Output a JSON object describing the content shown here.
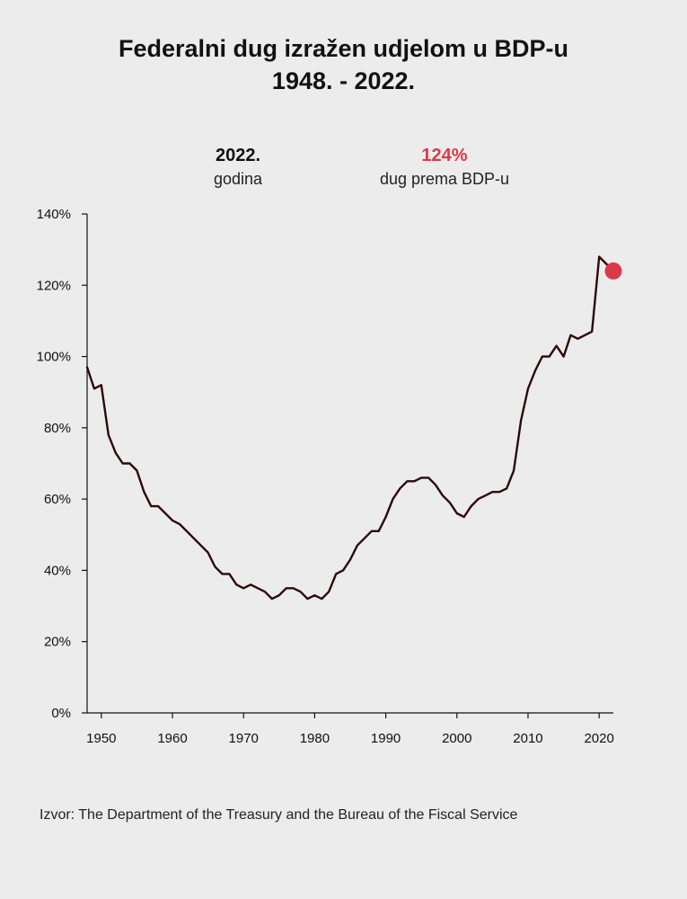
{
  "title_line1": "Federalni dug izražen udjelom u BDP-u",
  "title_line2": "1948. - 2022.",
  "highlight": {
    "year_value": "2022.",
    "year_label": "godina",
    "debt_value": "124%",
    "debt_label": "dug prema BDP-u"
  },
  "source": "Izvor: The Department of the Treasury and the Bureau of the Fiscal Service",
  "colors": {
    "line": "#2a0a0a",
    "highlight": "#d93a4b",
    "background": "#ececec"
  },
  "chart_data": {
    "type": "line",
    "title": "Federalni dug izražen udjelom u BDP-u 1948. - 2022.",
    "xlim": [
      1948,
      2022
    ],
    "ylim": [
      0,
      140
    ],
    "x_ticks": [
      "1950",
      "1960",
      "1970",
      "1980",
      "1990",
      "2000",
      "2010",
      "2020"
    ],
    "y_ticks": [
      "0%",
      "20%",
      "40%",
      "60%",
      "80%",
      "100%",
      "120%",
      "140%"
    ],
    "grid": false,
    "series": [
      {
        "x": [
          1948,
          1949,
          1950,
          1951,
          1952,
          1953,
          1954,
          1955,
          1956,
          1957,
          1958,
          1959,
          1960,
          1961,
          1962,
          1963,
          1964,
          1965,
          1966,
          1967,
          1968,
          1969,
          1970,
          1971,
          1972,
          1973,
          1974,
          1975,
          1976,
          1977,
          1978,
          1979,
          1980,
          1981,
          1982,
          1983,
          1984,
          1985,
          1986,
          1987,
          1988,
          1989,
          1990,
          1991,
          1992,
          1993,
          1994,
          1995,
          1996,
          1997,
          1998,
          1999,
          2000,
          2001,
          2002,
          2003,
          2004,
          2005,
          2006,
          2007,
          2008,
          2009,
          2010,
          2011,
          2012,
          2013,
          2014,
          2015,
          2016,
          2017,
          2018,
          2019,
          2020,
          2021
        ],
        "values": [
          97,
          91,
          92,
          78,
          73,
          70,
          70,
          68,
          62,
          58,
          58,
          56,
          54,
          53,
          51,
          49,
          47,
          45,
          41,
          39,
          39,
          36,
          35,
          36,
          35,
          34,
          32,
          33,
          35,
          35,
          34,
          32,
          33,
          32,
          34,
          39,
          40,
          43,
          47,
          49,
          51,
          51,
          55,
          60,
          63,
          65,
          65,
          66,
          66,
          64,
          61,
          59,
          56,
          55,
          58,
          60,
          61,
          62,
          62,
          63,
          68,
          82,
          91,
          96,
          100,
          100,
          103,
          100,
          106,
          105,
          106,
          107,
          128,
          126
        ]
      }
    ],
    "highlight_point": {
      "x": 2022,
      "y": 124
    }
  }
}
